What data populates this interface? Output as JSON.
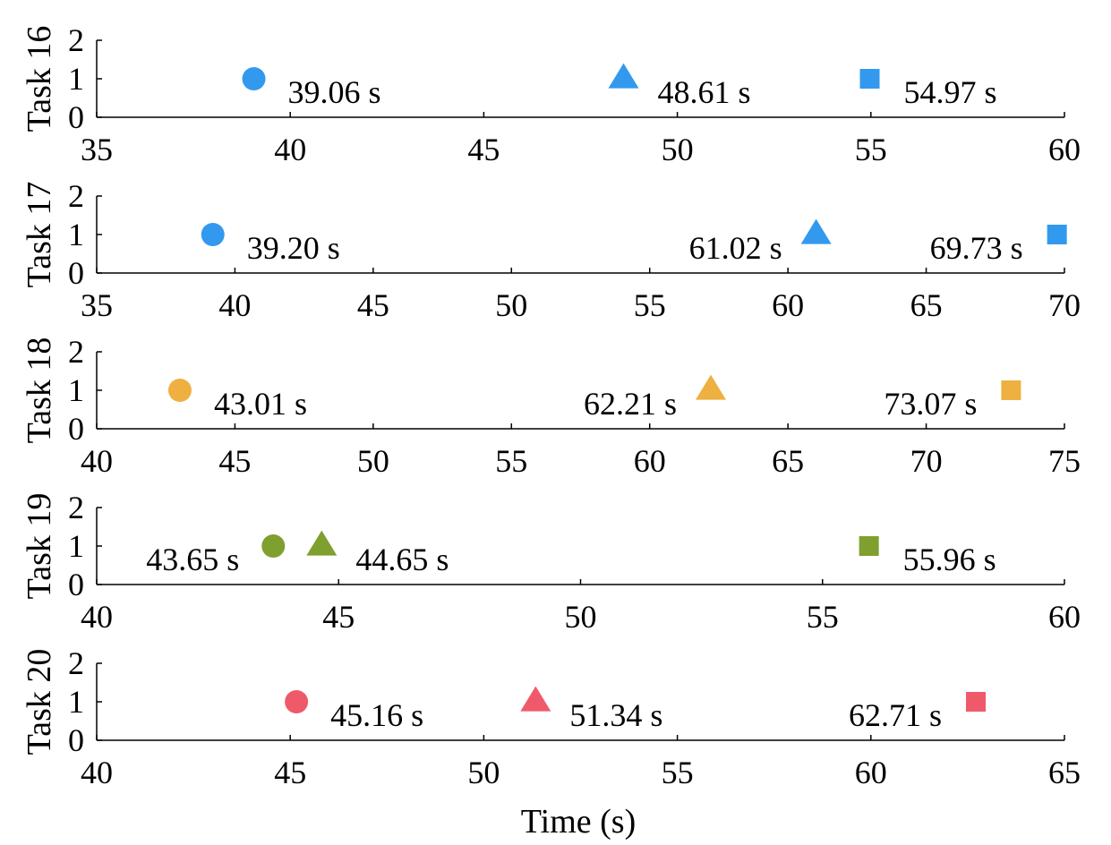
{
  "chart_data": {
    "type": "scatter",
    "xlabel": "Time (s)",
    "colors": {
      "Task 16": "#3399ee",
      "Task 17": "#3399ee",
      "Task 18": "#eeb040",
      "Task 19": "#7f9f2f",
      "Task 20": "#ee5a6a"
    },
    "marker_shapes": [
      "circle",
      "triangle",
      "square"
    ],
    "panels": [
      {
        "ylabel": "Task 16",
        "xlim": [
          35,
          60
        ],
        "xticks": [
          35,
          40,
          45,
          50,
          55,
          60
        ],
        "ylim": [
          0,
          2
        ],
        "yticks": [
          0,
          1,
          2
        ],
        "points": [
          {
            "x": 39.06,
            "y": 1,
            "marker": "circle",
            "label": "39.06 s",
            "label_side": "right"
          },
          {
            "x": 48.61,
            "y": 1,
            "marker": "triangle",
            "label": "48.61 s",
            "label_side": "right"
          },
          {
            "x": 54.97,
            "y": 1,
            "marker": "square",
            "label": "54.97 s",
            "label_side": "right"
          }
        ]
      },
      {
        "ylabel": "Task 17",
        "xlim": [
          35,
          70
        ],
        "xticks": [
          35,
          40,
          45,
          50,
          55,
          60,
          65,
          70
        ],
        "ylim": [
          0,
          2
        ],
        "yticks": [
          0,
          1,
          2
        ],
        "points": [
          {
            "x": 39.2,
            "y": 1,
            "marker": "circle",
            "label": "39.20 s",
            "label_side": "right"
          },
          {
            "x": 61.02,
            "y": 1,
            "marker": "triangle",
            "label": "61.02 s",
            "label_side": "left"
          },
          {
            "x": 69.73,
            "y": 1,
            "marker": "square",
            "label": "69.73 s",
            "label_side": "left"
          }
        ]
      },
      {
        "ylabel": "Task 18",
        "xlim": [
          40,
          75
        ],
        "xticks": [
          40,
          45,
          50,
          55,
          60,
          65,
          70,
          75
        ],
        "ylim": [
          0,
          2
        ],
        "yticks": [
          0,
          1,
          2
        ],
        "points": [
          {
            "x": 43.01,
            "y": 1,
            "marker": "circle",
            "label": "43.01 s",
            "label_side": "right"
          },
          {
            "x": 62.21,
            "y": 1,
            "marker": "triangle",
            "label": "62.21 s",
            "label_side": "left"
          },
          {
            "x": 73.07,
            "y": 1,
            "marker": "square",
            "label": "73.07 s",
            "label_side": "left"
          }
        ]
      },
      {
        "ylabel": "Task 19",
        "xlim": [
          40,
          60
        ],
        "xticks": [
          40,
          45,
          50,
          55,
          60
        ],
        "ylim": [
          0,
          2
        ],
        "yticks": [
          0,
          1,
          2
        ],
        "points": [
          {
            "x": 43.65,
            "y": 1,
            "marker": "circle",
            "label": "43.65 s",
            "label_side": "left"
          },
          {
            "x": 44.65,
            "y": 1,
            "marker": "triangle",
            "label": "44.65 s",
            "label_side": "right"
          },
          {
            "x": 55.96,
            "y": 1,
            "marker": "square",
            "label": "55.96 s",
            "label_side": "right"
          }
        ]
      },
      {
        "ylabel": "Task 20",
        "xlim": [
          40,
          65
        ],
        "xticks": [
          40,
          45,
          50,
          55,
          60,
          65
        ],
        "ylim": [
          0,
          2
        ],
        "yticks": [
          0,
          1,
          2
        ],
        "points": [
          {
            "x": 45.16,
            "y": 1,
            "marker": "circle",
            "label": "45.16 s",
            "label_side": "right"
          },
          {
            "x": 51.34,
            "y": 1,
            "marker": "triangle",
            "label": "51.34 s",
            "label_side": "right"
          },
          {
            "x": 62.71,
            "y": 1,
            "marker": "square",
            "label": "62.71 s",
            "label_side": "left"
          }
        ]
      }
    ]
  }
}
